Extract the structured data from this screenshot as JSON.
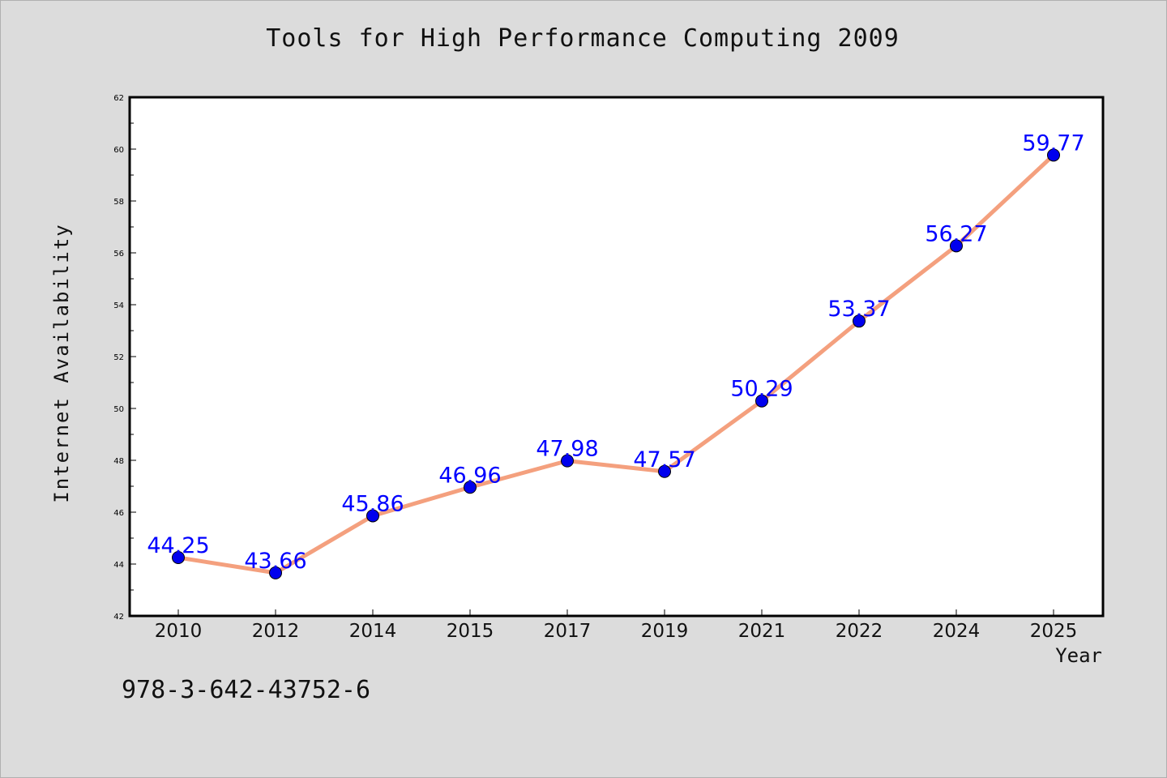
{
  "chart_data": {
    "type": "line",
    "title": "Tools for High Performance Computing 2009",
    "xlabel": "Year",
    "ylabel": "Internet Availability",
    "categories": [
      "2010",
      "2012",
      "2014",
      "2015",
      "2017",
      "2019",
      "2021",
      "2022",
      "2024",
      "2025"
    ],
    "series": [
      {
        "values": [
          44.25,
          43.66,
          45.86,
          46.96,
          47.98,
          47.57,
          50.29,
          53.37,
          56.27,
          59.77
        ],
        "labels": [
          "44.25",
          "43.66",
          "45.86",
          "46.96",
          "47.98",
          "47.57",
          "50.29",
          "53.37",
          "56.27",
          "59.77"
        ],
        "line_color": "#f4a07e",
        "marker_color": "#0000ee",
        "label_color": "#0000ff"
      }
    ],
    "ylim": [
      42,
      62
    ],
    "yticks": [
      "42",
      "44",
      "46",
      "48",
      "50",
      "52",
      "54",
      "56",
      "58",
      "60",
      "62"
    ],
    "grid": false,
    "legend": "none"
  },
  "footer": {
    "isbn": "978-3-642-43752-6"
  },
  "colors": {
    "background": "#dcdcdc",
    "plot_area": "#ffffff",
    "axis": "#000000"
  }
}
